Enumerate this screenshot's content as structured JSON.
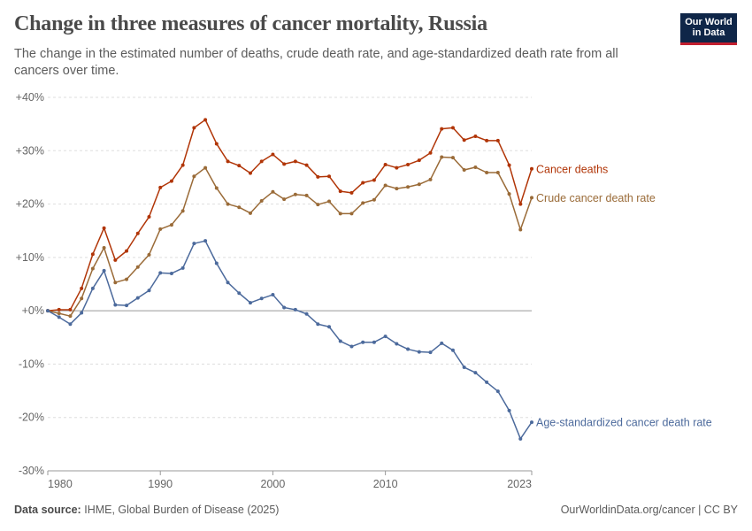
{
  "header": {
    "title": "Change in three measures of cancer mortality, Russia",
    "subtitle": "The change in the estimated number of deaths, crude death rate, and age-standardized death rate from all cancers over time.",
    "logo_line1": "Our World",
    "logo_line2": "in Data"
  },
  "footer": {
    "source_label": "Data source:",
    "source_text": "IHME, Global Burden of Disease (2025)",
    "credit": "OurWorldinData.org/cancer | CC BY"
  },
  "colors": {
    "cancer_deaths": "#b13507",
    "crude_rate": "#9a6b38",
    "age_standardized": "#4c6a9c",
    "grid": "#dddddd",
    "zero_line": "#999999",
    "tick_text": "#666666"
  },
  "chart_data": {
    "type": "line",
    "title": "Change in three measures of cancer mortality, Russia",
    "xlabel": "",
    "ylabel": "",
    "xlim": [
      1980,
      2023
    ],
    "ylim": [
      -30,
      40
    ],
    "x_ticks": [
      "1980",
      "1990",
      "2000",
      "2010",
      "2023"
    ],
    "y_ticks": [
      "+40%",
      "+30%",
      "+20%",
      "+10%",
      "+0%",
      "-10%",
      "-20%",
      "-30%"
    ],
    "y_tick_values": [
      40,
      30,
      20,
      10,
      0,
      -10,
      -20,
      -30
    ],
    "grid": "horizontal dashed",
    "legend": "line-end labels (right)",
    "x": [
      1980,
      1981,
      1982,
      1983,
      1984,
      1985,
      1986,
      1987,
      1988,
      1989,
      1990,
      1991,
      1992,
      1993,
      1994,
      1995,
      1996,
      1997,
      1998,
      1999,
      2000,
      2001,
      2002,
      2003,
      2004,
      2005,
      2006,
      2007,
      2008,
      2009,
      2010,
      2011,
      2012,
      2013,
      2014,
      2015,
      2016,
      2017,
      2018,
      2019,
      2020,
      2021,
      2022,
      2023
    ],
    "series": [
      {
        "name": "Cancer deaths",
        "color_key": "cancer_deaths",
        "values": [
          0,
          0.2,
          0.2,
          4.2,
          10.6,
          15.5,
          9.5,
          11.2,
          14.5,
          17.6,
          23.1,
          24.3,
          27.3,
          34.3,
          35.8,
          31.3,
          28.0,
          27.2,
          25.8,
          28.0,
          29.3,
          27.5,
          28.0,
          27.3,
          25.1,
          25.2,
          22.4,
          22.1,
          24.0,
          24.5,
          27.4,
          26.8,
          27.4,
          28.2,
          29.6,
          34.1,
          34.3,
          32.0,
          32.7,
          31.9,
          31.9,
          27.3,
          20.0,
          26.6
        ]
      },
      {
        "name": "Crude cancer death rate",
        "color_key": "crude_rate",
        "values": [
          0,
          -0.5,
          -1.0,
          2.3,
          7.9,
          11.8,
          5.3,
          5.9,
          8.2,
          10.5,
          15.3,
          16.1,
          18.7,
          25.2,
          26.8,
          23.0,
          20.0,
          19.4,
          18.3,
          20.6,
          22.3,
          20.9,
          21.8,
          21.6,
          19.9,
          20.5,
          18.2,
          18.2,
          20.2,
          20.8,
          23.5,
          22.9,
          23.2,
          23.7,
          24.6,
          28.8,
          28.7,
          26.4,
          26.9,
          25.9,
          25.9,
          21.9,
          15.2,
          21.2
        ]
      },
      {
        "name": "Age-standardized cancer death rate",
        "color_key": "age_standardized",
        "values": [
          0,
          -1.2,
          -2.5,
          -0.4,
          4.2,
          7.5,
          1.1,
          1.0,
          2.4,
          3.8,
          7.1,
          7.0,
          8.0,
          12.6,
          13.1,
          8.9,
          5.3,
          3.3,
          1.5,
          2.3,
          3.0,
          0.6,
          0.2,
          -0.6,
          -2.5,
          -3.0,
          -5.7,
          -6.7,
          -5.9,
          -5.9,
          -4.8,
          -6.2,
          -7.2,
          -7.7,
          -7.8,
          -6.1,
          -7.4,
          -10.6,
          -11.6,
          -13.4,
          -15.1,
          -18.7,
          -24.0,
          -20.9
        ]
      }
    ]
  }
}
